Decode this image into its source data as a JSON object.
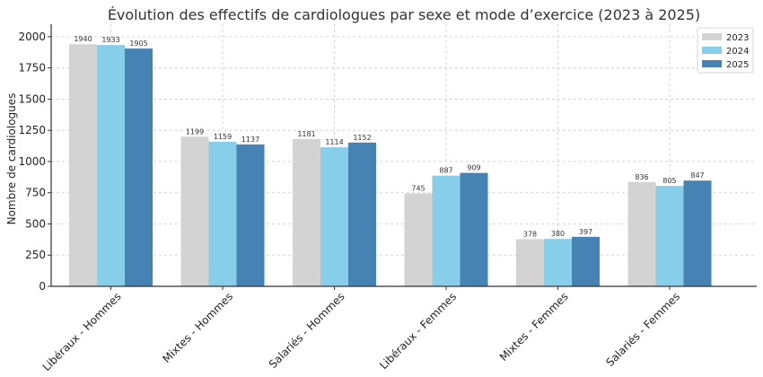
{
  "chart_data": {
    "type": "bar",
    "title": "Évolution des effectifs de cardiologues par sexe et mode d’exercice (2023 à 2025)",
    "xlabel": "",
    "ylabel": "Nombre de cardiologues",
    "ylim": [
      0,
      2100
    ],
    "yticks": [
      "0",
      "250",
      "500",
      "750",
      "1000",
      "1250",
      "1500",
      "1750",
      "2000"
    ],
    "grid": true,
    "legend_position": "top-right",
    "categories": [
      "Libéraux - Hommes",
      "Mixtes - Hommes",
      "Salariés - Hommes",
      "Libéraux - Femmes",
      "Mixtes - Femmes",
      "Salariés - Femmes"
    ],
    "series": [
      {
        "name": "2023",
        "color": "#d3d3d3",
        "values": [
          1940,
          1199,
          1181,
          745,
          378,
          836
        ]
      },
      {
        "name": "2024",
        "color": "#87ceeb",
        "values": [
          1933,
          1159,
          1114,
          887,
          380,
          805
        ]
      },
      {
        "name": "2025",
        "color": "#4682b4",
        "values": [
          1905,
          1137,
          1152,
          909,
          397,
          847
        ]
      }
    ]
  }
}
